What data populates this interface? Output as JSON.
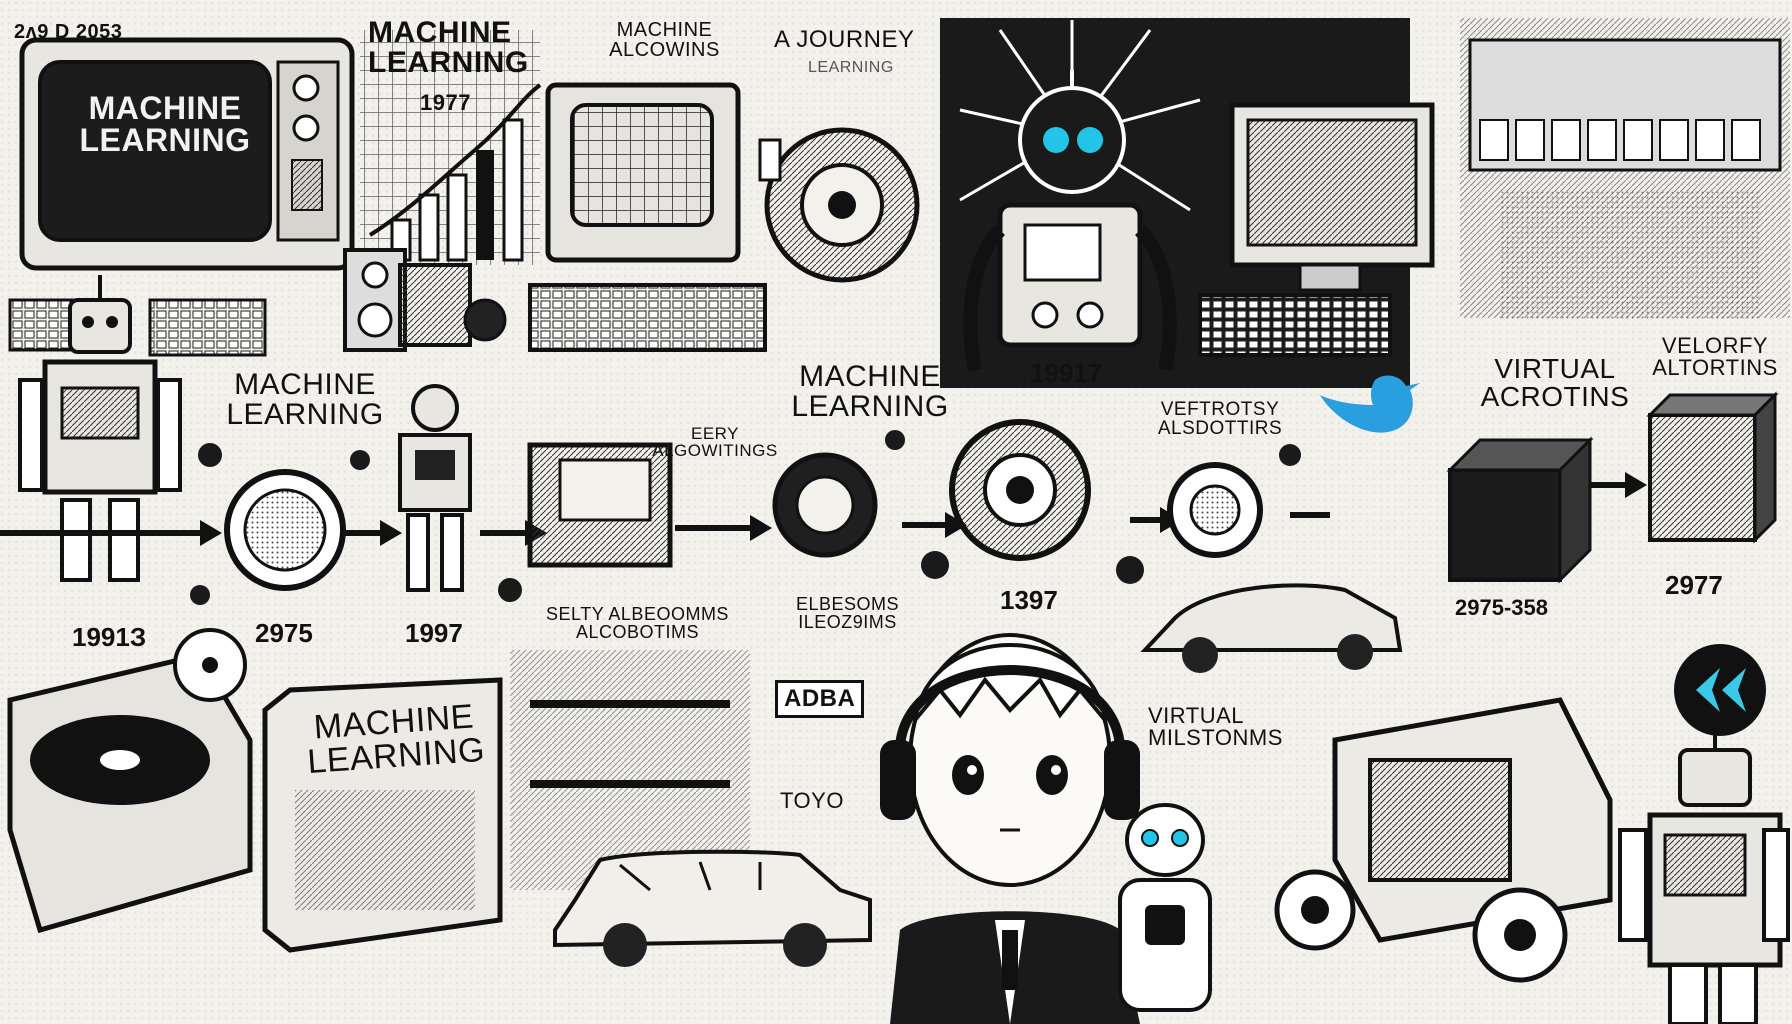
{
  "labels": {
    "top_left_stamp": "2ᴧ9 D 2053",
    "tv_screen": "MACHINE LEARNING",
    "chart_title": "MACHINE LEARNING",
    "chart_year": "1977",
    "computer_title": "MACHINE ALCOWINS",
    "journey": "A JOURNEY",
    "journey_sub": "LEARNING",
    "robot_year_top": "19917",
    "timeline_title_left": "MACHINE LEARNING",
    "timeline_title_mid": "MACHINE LEARNING",
    "early_algos": "EERY ALGOWITINGS",
    "vertotsy": "VEFTROTSY ALSDOTTIRS",
    "virtual_top": "VIRTUAL ACROTINS",
    "velorfy": "VELORFY ALTORTINS",
    "selfy_algos": "SELTY ALBEOOMMS ALCOBOTIMS",
    "eblesoms": "ELBESOMS ILEOZ9IMS",
    "book_title": "MACHINE LEARNING",
    "adba": "ADBA",
    "toyo": "TOYO",
    "virtual_bottom": "VIRTUAL MILSTONMS"
  },
  "years": {
    "y1": "1991З",
    "y2": "2975",
    "y3": "1997",
    "y4": "1397",
    "y5": "2975-358",
    "y6": "2977"
  },
  "icons": [
    "tv-icon",
    "robot-icon",
    "computer-icon",
    "gear-icon",
    "car-icon",
    "bird-icon",
    "cube-icon",
    "headphones-icon",
    "record-player-icon"
  ],
  "colors": {
    "ink": "#111111",
    "paper": "#f3f1ec",
    "robot_eye": "#22c5e8",
    "bird_blue": "#2a9fe0",
    "logo_cyan": "#3cc8e8"
  }
}
